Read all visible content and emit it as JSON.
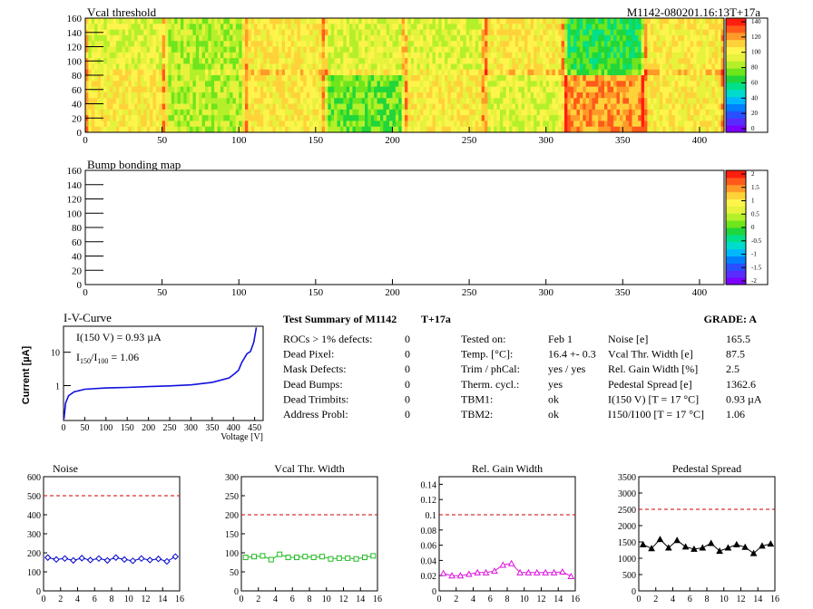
{
  "header": {
    "id": "M1142-080201.16:13T+17a"
  },
  "colors": {
    "palette": [
      "#7b00ff",
      "#5a2bff",
      "#2950ff",
      "#0080ff",
      "#00b8ff",
      "#00dccc",
      "#00e08a",
      "#20d63a",
      "#6ee51c",
      "#b4f02a",
      "#e6f23c",
      "#fff44c",
      "#ffd23a",
      "#ff9a28",
      "#ff5a1a",
      "#ff1e10"
    ],
    "blue_curve": "#1010e0",
    "noise": "#0000cc",
    "vcal": "#22bb22",
    "gain": "#dd11dd",
    "pedestal": "#000000",
    "limit": "#cc0000"
  },
  "vcal_map": {
    "title": "Vcal threshold",
    "xticks": [
      "0",
      "50",
      "100",
      "150",
      "200",
      "250",
      "300",
      "350",
      "400"
    ],
    "yticks": [
      "0",
      "20",
      "40",
      "60",
      "80",
      "100",
      "120",
      "140",
      "160"
    ],
    "scale_ticks": [
      "0",
      "20",
      "40",
      "60",
      "80",
      "100",
      "120",
      "140"
    ]
  },
  "bump_map": {
    "title": "Bump bonding map",
    "xticks": [
      "0",
      "50",
      "100",
      "150",
      "200",
      "250",
      "300",
      "350",
      "400"
    ],
    "yticks": [
      "0",
      "20",
      "40",
      "60",
      "80",
      "100",
      "120",
      "140",
      "160"
    ],
    "scale_ticks": [
      "-2",
      "-1.5",
      "-1",
      "-0.5",
      "0",
      "0.5",
      "1",
      "1.5",
      "2"
    ]
  },
  "iv": {
    "title": "I-V-Curve",
    "ylabel": "Current [µA]",
    "xlabel": "Voltage [V]",
    "ann1": "I(150 V) = 0.93 µA",
    "ann2_pre": "I",
    "ann2_sub": "150",
    "ann2_mid": "/I",
    "ann2_sub2": "100",
    "ann2_post": "=  1.06",
    "yticks": [
      "1",
      "10"
    ],
    "xticks": [
      "0",
      "50",
      "100",
      "150",
      "200",
      "250",
      "300",
      "350",
      "400",
      "450"
    ]
  },
  "summary": {
    "title": "Test Summary of M1142",
    "temp": "T+17a",
    "grade": "GRADE:  A",
    "left": [
      {
        "label": "ROCs > 1% defects:",
        "value": "0"
      },
      {
        "label": "Dead Pixel:",
        "value": "0"
      },
      {
        "label": "Mask Defects:",
        "value": "0"
      },
      {
        "label": "Dead Bumps:",
        "value": "0"
      },
      {
        "label": "Dead Trimbits:",
        "value": "0"
      },
      {
        "label": "Address Probl:",
        "value": "0"
      }
    ],
    "mid": [
      {
        "label": "Tested on:",
        "value": "Feb 1"
      },
      {
        "label": "Temp. [°C]:",
        "value": "16.4 +- 0.3"
      },
      {
        "label": "Trim / phCal:",
        "value": "yes / yes"
      },
      {
        "label": "Therm. cycl.:",
        "value": "yes"
      },
      {
        "label": "TBM1:",
        "value": "ok"
      },
      {
        "label": "TBM2:",
        "value": "ok"
      }
    ],
    "right": [
      {
        "label": "Noise [e]",
        "value": "165.5"
      },
      {
        "label": "Vcal Thr. Width [e]",
        "value": "87.5"
      },
      {
        "label": "Rel. Gain Width [%]",
        "value": "2.5"
      },
      {
        "label": "Pedestal Spread [e]",
        "value": "1362.6"
      },
      {
        "label": "I(150 V) [T = 17 °C]",
        "value": "0.93 µA"
      },
      {
        "label": "I150/I100  [T = 17 °C]",
        "value": "1.06"
      }
    ]
  },
  "chart_data": [
    {
      "type": "line",
      "title": "Noise",
      "x": [
        0,
        1,
        2,
        3,
        4,
        5,
        6,
        7,
        8,
        9,
        10,
        11,
        12,
        13,
        14,
        15
      ],
      "series": [
        {
          "values": [
            175,
            165,
            170,
            160,
            172,
            162,
            170,
            160,
            175,
            165,
            158,
            170,
            162,
            168,
            155,
            180
          ]
        }
      ],
      "limit": 500,
      "ylim": [
        0,
        600
      ],
      "xlim": [
        0,
        16
      ],
      "yticks": [
        "0",
        "100",
        "200",
        "300",
        "400",
        "500",
        "600"
      ],
      "xticks": [
        "0",
        "2",
        "4",
        "6",
        "8",
        "10",
        "12",
        "14",
        "16"
      ]
    },
    {
      "type": "line",
      "title": "Vcal Thr. Width",
      "x": [
        0,
        1,
        2,
        3,
        4,
        5,
        6,
        7,
        8,
        9,
        10,
        11,
        12,
        13,
        14,
        15
      ],
      "series": [
        {
          "values": [
            88,
            90,
            92,
            82,
            96,
            88,
            88,
            90,
            88,
            90,
            84,
            86,
            86,
            84,
            88,
            92
          ]
        }
      ],
      "limit": 200,
      "ylim": [
        0,
        300
      ],
      "xlim": [
        0,
        16
      ],
      "yticks": [
        "0",
        "50",
        "100",
        "150",
        "200",
        "250",
        "300"
      ],
      "xticks": [
        "0",
        "2",
        "4",
        "6",
        "8",
        "10",
        "12",
        "14",
        "16"
      ]
    },
    {
      "type": "line",
      "title": "Rel. Gain Width",
      "x": [
        0,
        1,
        2,
        3,
        4,
        5,
        6,
        7,
        8,
        9,
        10,
        11,
        12,
        13,
        14,
        15
      ],
      "series": [
        {
          "values": [
            0.023,
            0.02,
            0.02,
            0.022,
            0.024,
            0.024,
            0.026,
            0.034,
            0.036,
            0.024,
            0.024,
            0.024,
            0.024,
            0.024,
            0.025,
            0.019
          ]
        }
      ],
      "limit": 0.1,
      "ylim": [
        0,
        0.15
      ],
      "xlim": [
        0,
        16
      ],
      "yticks": [
        "0",
        "0.02",
        "0.04",
        "0.06",
        "0.08",
        "0.1",
        "0.12",
        "0.14"
      ],
      "xticks": [
        "0",
        "2",
        "4",
        "6",
        "8",
        "10",
        "12",
        "14",
        "16"
      ]
    },
    {
      "type": "line",
      "title": "Pedestal Spread",
      "x": [
        0,
        1,
        2,
        3,
        4,
        5,
        6,
        7,
        8,
        9,
        10,
        11,
        12,
        13,
        14,
        15
      ],
      "series": [
        {
          "values": [
            1420,
            1300,
            1580,
            1320,
            1550,
            1350,
            1280,
            1320,
            1460,
            1220,
            1320,
            1420,
            1340,
            1150,
            1380,
            1440
          ]
        }
      ],
      "limit": 2500,
      "ylim": [
        0,
        3500
      ],
      "xlim": [
        0,
        16
      ],
      "yticks": [
        "0",
        "500",
        "1000",
        "1500",
        "2000",
        "2500",
        "3000",
        "3500"
      ],
      "xticks": [
        "0",
        "2",
        "4",
        "6",
        "8",
        "10",
        "12",
        "14",
        "16"
      ]
    }
  ]
}
